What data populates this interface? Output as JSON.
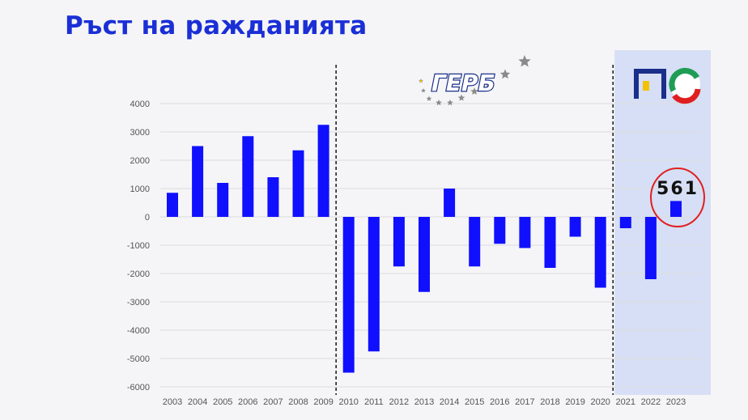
{
  "slide": {
    "title": "Ръст на ражданията",
    "party_logo_text": "ГЕРБ",
    "callout_value": "561"
  },
  "colors": {
    "title": "#1a2fd6",
    "bar": "#1010ff",
    "highlight_band": "#d6dff5",
    "callout_circle": "#e02020",
    "grid": "#dcdcdc"
  },
  "chart_data": {
    "type": "bar",
    "categories": [
      "2003",
      "2004",
      "2005",
      "2006",
      "2007",
      "2008",
      "2009",
      "2010",
      "2011",
      "2012",
      "2013",
      "2014",
      "2015",
      "2016",
      "2017",
      "2018",
      "2019",
      "2020",
      "2021",
      "2022",
      "2023"
    ],
    "values": [
      850,
      2500,
      1200,
      2850,
      1400,
      2350,
      3250,
      -5500,
      -4750,
      -1750,
      -2650,
      1000,
      -1750,
      -950,
      -1100,
      -1800,
      -700,
      -2500,
      -400,
      -2200,
      561
    ],
    "ylim": [
      -6000,
      4000
    ],
    "yticks": [
      4000,
      3000,
      2000,
      1000,
      0,
      -1000,
      -2000,
      -3000,
      -4000,
      -5000,
      -6000
    ],
    "grid": true,
    "dividers_after": [
      "2009",
      "2020"
    ],
    "highlight_from": "2021",
    "annotation": {
      "category": "2023",
      "text": "561"
    }
  }
}
